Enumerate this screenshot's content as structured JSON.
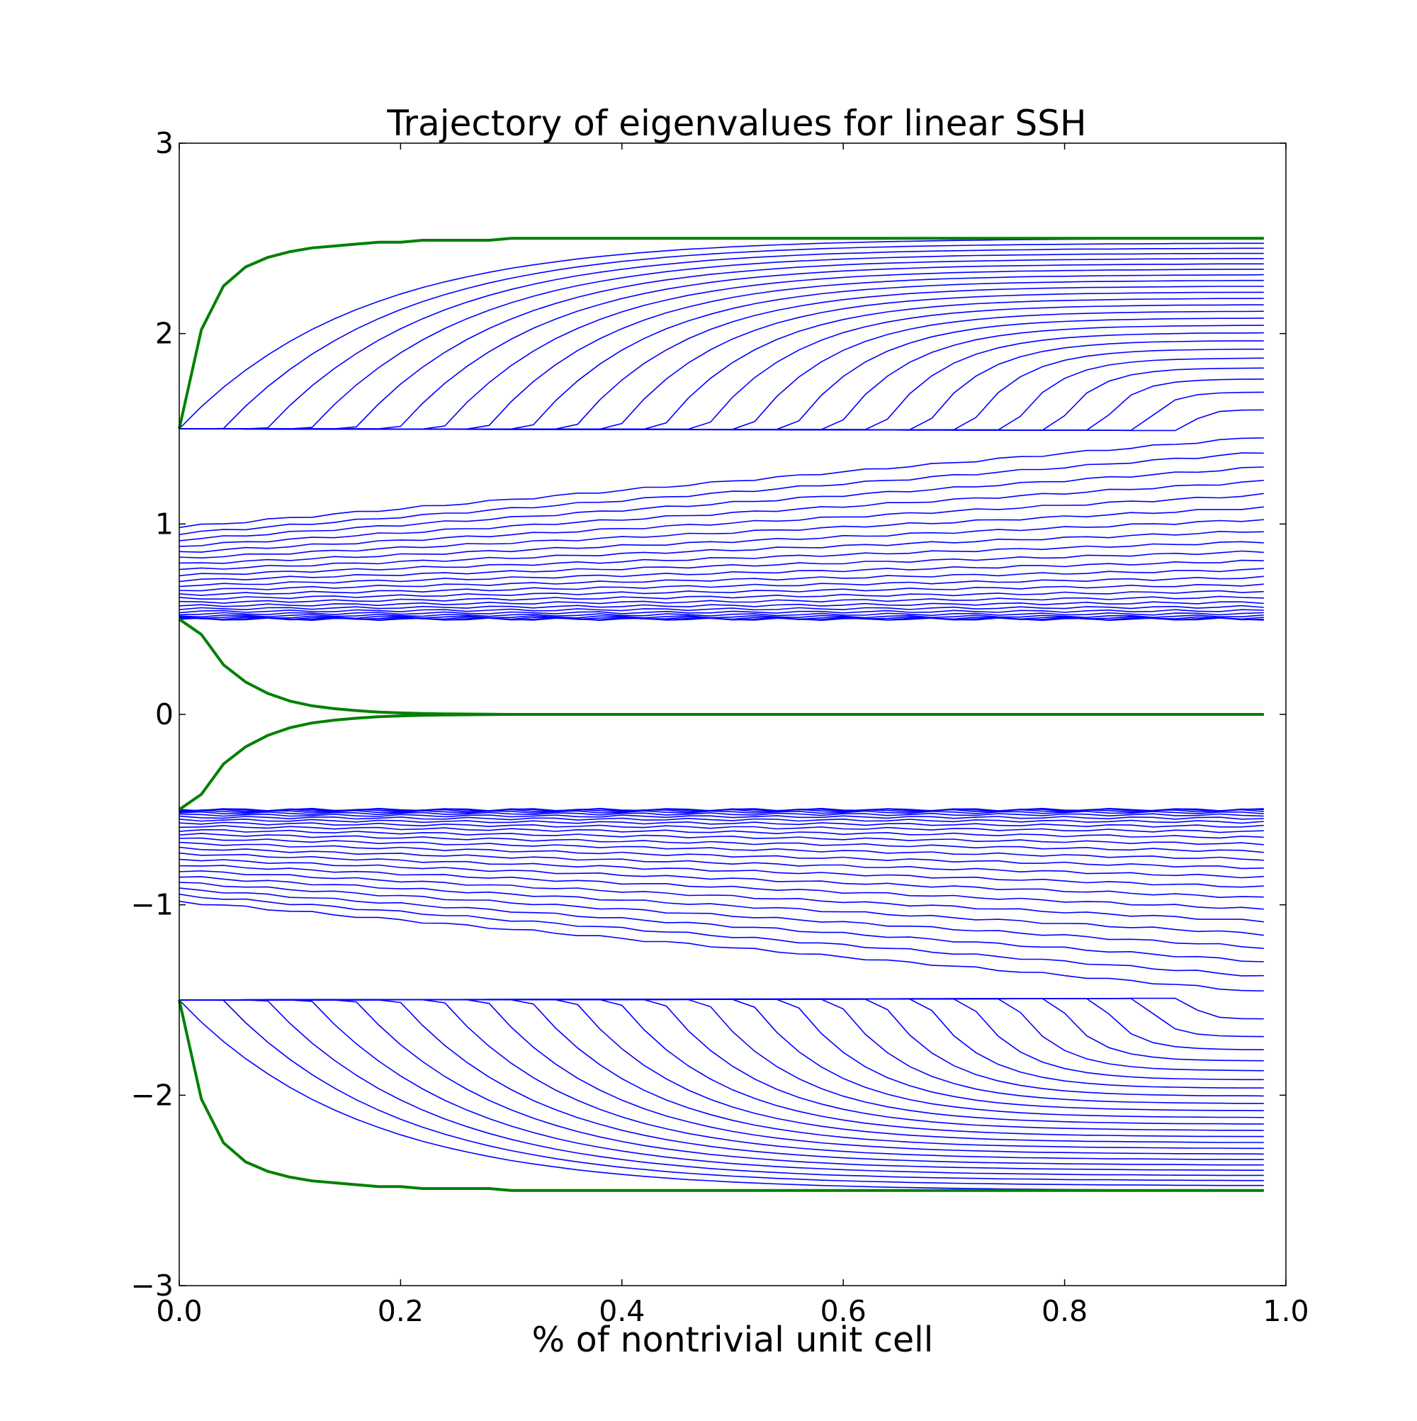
{
  "chart_data": {
    "type": "line",
    "title": "Trajectory of eigenvalues for linear SSH",
    "xlabel": "% of nontrivial unit cell",
    "ylabel": "",
    "xlim": [
      0.0,
      1.0
    ],
    "ylim": [
      -3,
      3
    ],
    "grid": false,
    "legend": "none",
    "xticks": [
      "0.0",
      "0.2",
      "0.4",
      "0.6",
      "0.8",
      "1.0"
    ],
    "yticks": [
      "3",
      "2",
      "1",
      "0",
      "−1",
      "−2",
      "−3"
    ],
    "x": [
      0.0,
      0.02,
      0.04,
      0.06,
      0.08,
      0.1,
      0.12,
      0.14,
      0.16,
      0.18,
      0.2,
      0.22,
      0.24,
      0.26,
      0.28,
      0.3,
      0.32,
      0.34,
      0.36,
      0.38,
      0.4,
      0.42,
      0.44,
      0.46,
      0.48,
      0.5,
      0.52,
      0.54,
      0.56,
      0.58,
      0.6,
      0.62,
      0.64,
      0.66,
      0.68,
      0.7,
      0.72,
      0.74,
      0.76,
      0.78,
      0.8,
      0.82,
      0.84,
      0.86,
      0.88,
      0.9,
      0.92,
      0.94,
      0.96,
      0.98
    ],
    "bands": {
      "n_bulk_per_band": 48,
      "upper_bulk_range": [
        0.5,
        1.5
      ],
      "lower_bulk_range": [
        -1.5,
        -0.5
      ],
      "outer_edge_final": 2.5,
      "bulk_color": "#0000ff"
    },
    "edge_series": [
      {
        "values": [
          1.5,
          2.02,
          2.25,
          2.35,
          2.4,
          2.43,
          2.45,
          2.46,
          2.47,
          2.48,
          2.48,
          2.49,
          2.49,
          2.49,
          2.49,
          2.5,
          2.5,
          2.5,
          2.5,
          2.5,
          2.5,
          2.5,
          2.5,
          2.5,
          2.5,
          2.5,
          2.5,
          2.5,
          2.5,
          2.5,
          2.5,
          2.5,
          2.5,
          2.5,
          2.5,
          2.5,
          2.5,
          2.5,
          2.5,
          2.5,
          2.5,
          2.5,
          2.5,
          2.5,
          2.5,
          2.5,
          2.5,
          2.5,
          2.5,
          2.5
        ],
        "color": "#008000"
      },
      {
        "values": [
          0.5,
          0.42,
          0.26,
          0.17,
          0.11,
          0.07,
          0.045,
          0.03,
          0.02,
          0.012,
          0.008,
          0.005,
          0.003,
          0.002,
          0.001,
          0.0,
          0.0,
          0.0,
          0.0,
          0.0,
          0.0,
          0.0,
          0.0,
          0.0,
          0.0,
          0.0,
          0.0,
          0.0,
          0.0,
          0.0,
          0.0,
          0.0,
          0.0,
          0.0,
          0.0,
          0.0,
          0.0,
          0.0,
          0.0,
          0.0,
          0.0,
          0.0,
          0.0,
          0.0,
          0.0,
          0.0,
          0.0,
          0.0,
          0.0,
          0.0
        ],
        "color": "#008000"
      },
      {
        "values": [
          -0.5,
          -0.42,
          -0.26,
          -0.17,
          -0.11,
          -0.07,
          -0.045,
          -0.03,
          -0.02,
          -0.012,
          -0.008,
          -0.005,
          -0.003,
          -0.002,
          -0.001,
          0.0,
          0.0,
          0.0,
          0.0,
          0.0,
          0.0,
          0.0,
          0.0,
          0.0,
          0.0,
          0.0,
          0.0,
          0.0,
          0.0,
          0.0,
          0.0,
          0.0,
          0.0,
          0.0,
          0.0,
          0.0,
          0.0,
          0.0,
          0.0,
          0.0,
          0.0,
          0.0,
          0.0,
          0.0,
          0.0,
          0.0,
          0.0,
          0.0,
          0.0,
          0.0
        ],
        "color": "#008000"
      },
      {
        "values": [
          -1.5,
          -2.02,
          -2.25,
          -2.35,
          -2.4,
          -2.43,
          -2.45,
          -2.46,
          -2.47,
          -2.48,
          -2.48,
          -2.49,
          -2.49,
          -2.49,
          -2.49,
          -2.5,
          -2.5,
          -2.5,
          -2.5,
          -2.5,
          -2.5,
          -2.5,
          -2.5,
          -2.5,
          -2.5,
          -2.5,
          -2.5,
          -2.5,
          -2.5,
          -2.5,
          -2.5,
          -2.5,
          -2.5,
          -2.5,
          -2.5,
          -2.5,
          -2.5,
          -2.5,
          -2.5,
          -2.5,
          -2.5,
          -2.5,
          -2.5,
          -2.5,
          -2.5,
          -2.5,
          -2.5,
          -2.5,
          -2.5,
          -2.5
        ],
        "color": "#008000"
      }
    ]
  }
}
